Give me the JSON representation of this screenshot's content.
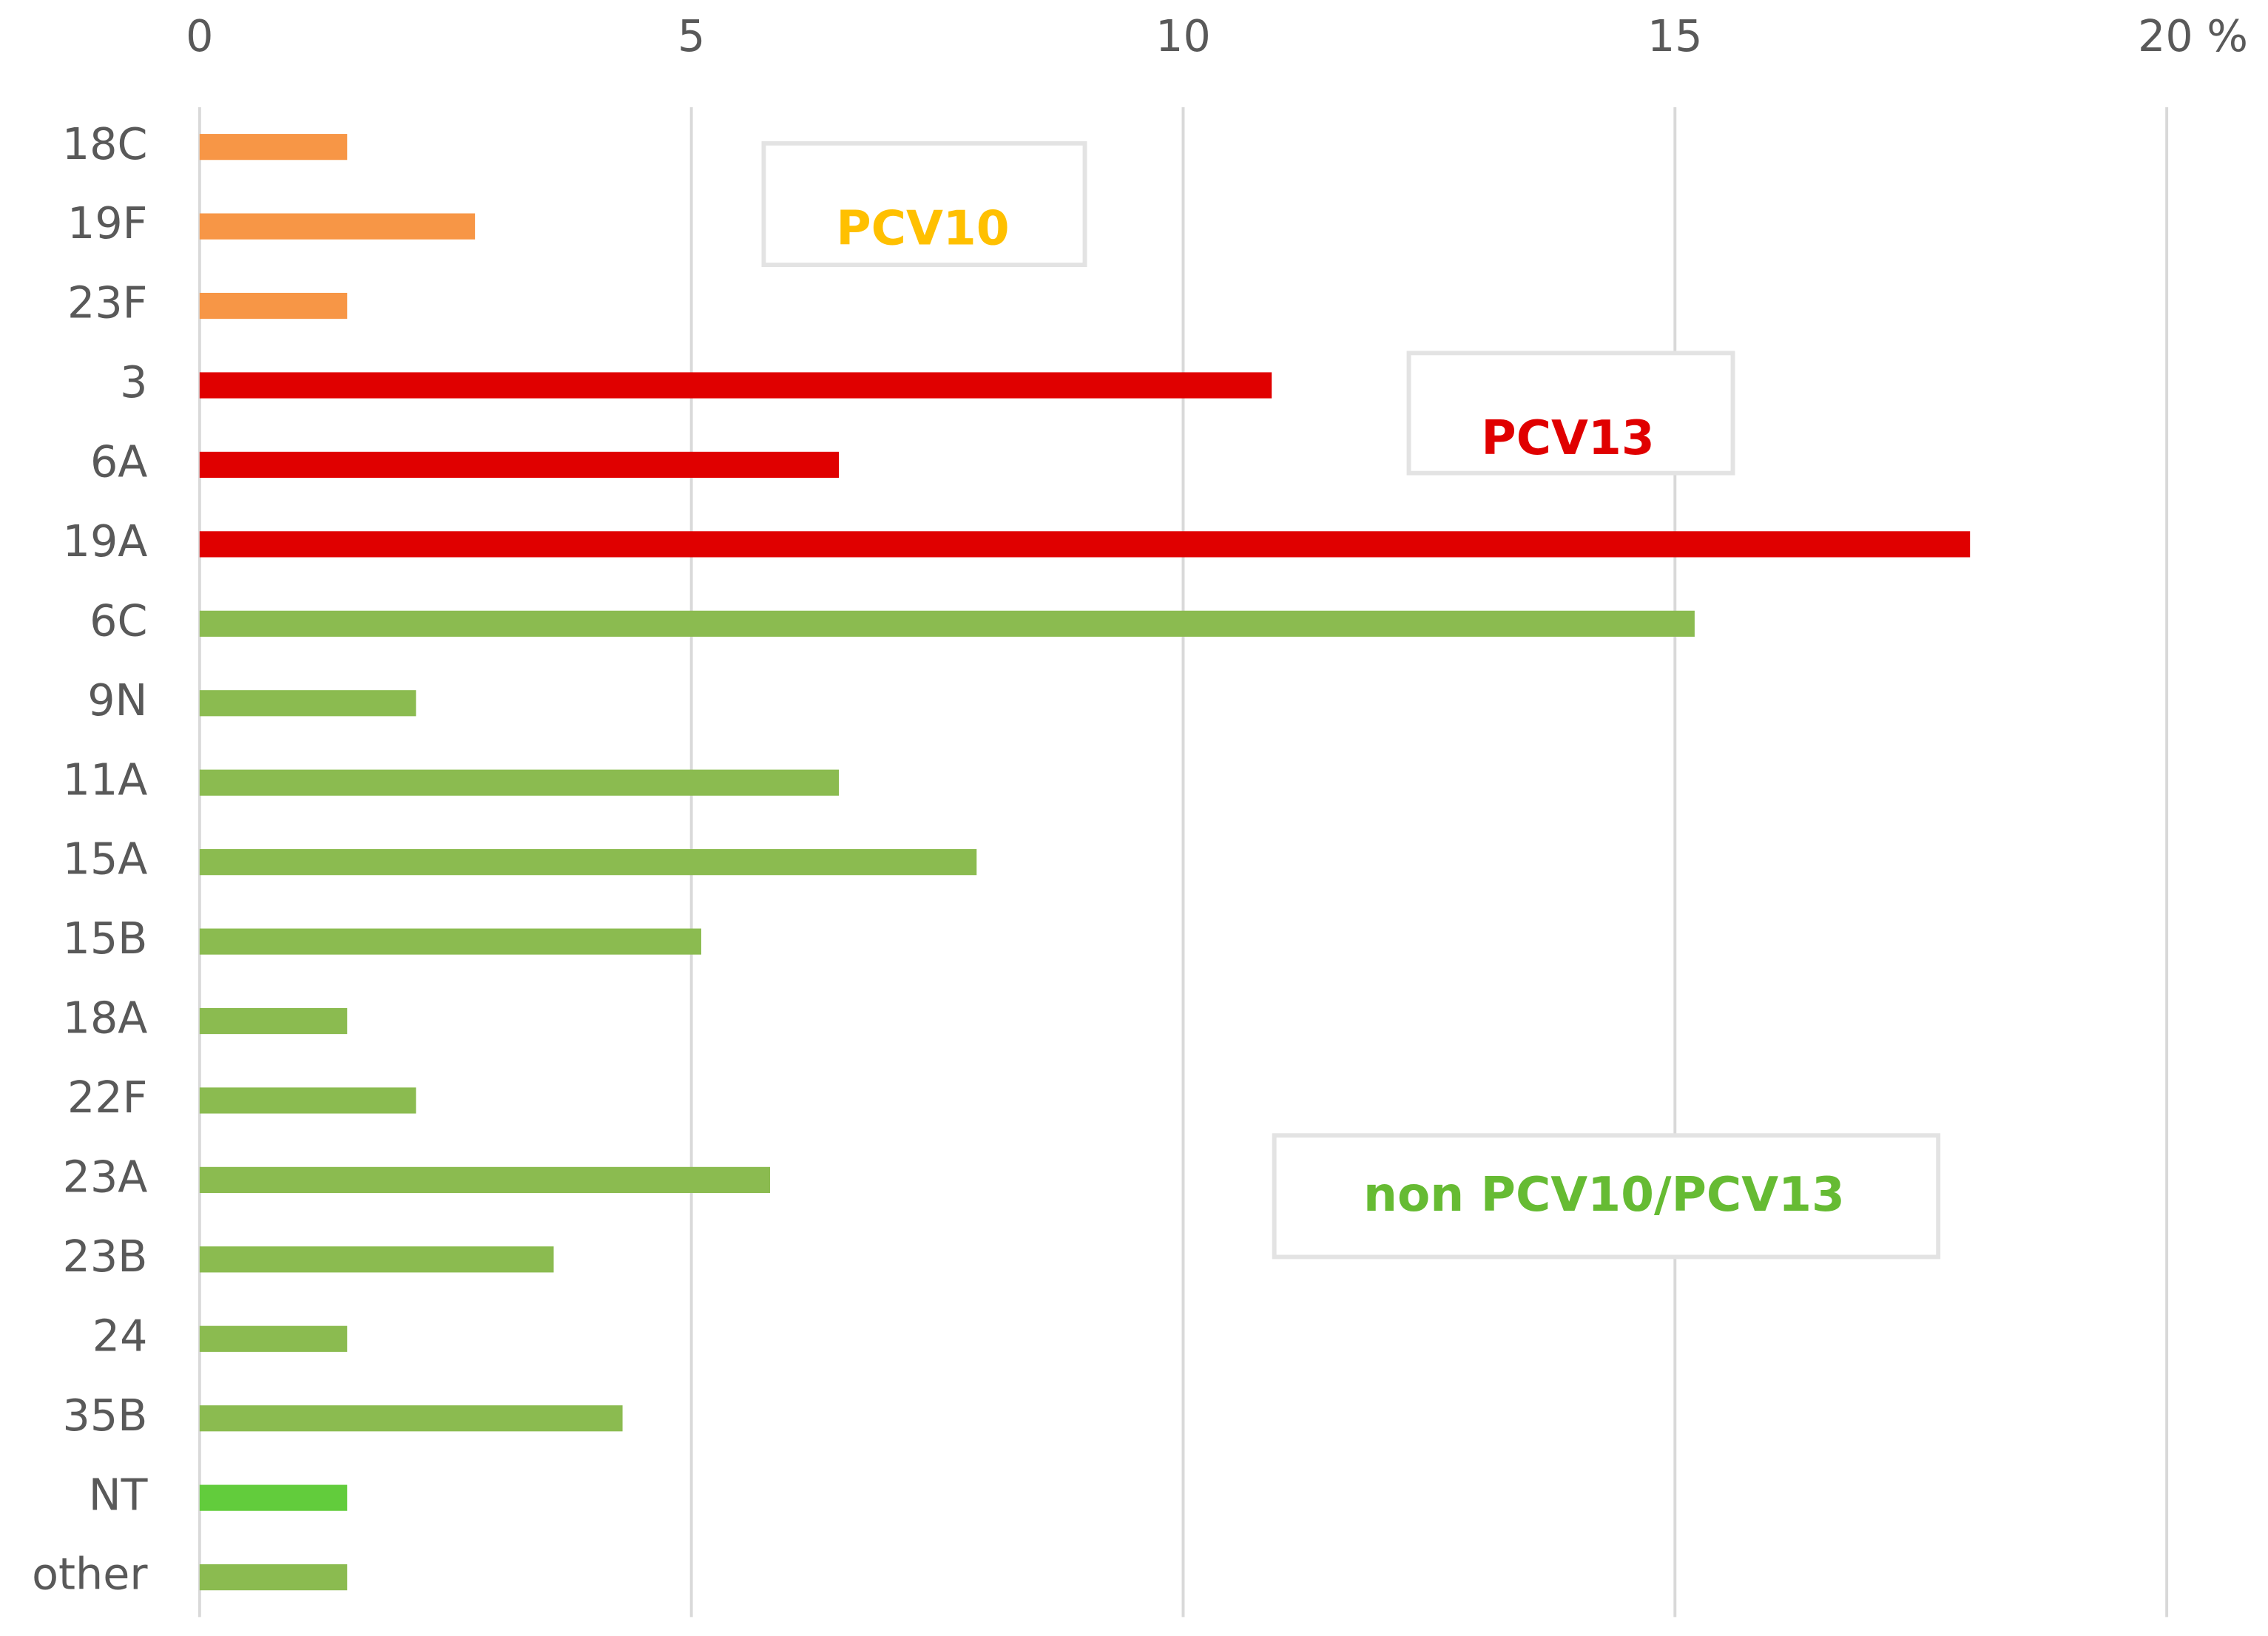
{
  "chart_data": {
    "type": "hbar",
    "categories": [
      "18C",
      "19F",
      "23F",
      "3",
      "6A",
      "19A",
      "6C",
      "9N",
      "11A",
      "15A",
      "15B",
      "18A",
      "22F",
      "23A",
      "23B",
      "24",
      "35B",
      "NT",
      "other"
    ],
    "values": [
      1.5,
      2.8,
      1.5,
      10.9,
      6.5,
      18.0,
      15.2,
      2.2,
      6.5,
      7.9,
      5.1,
      1.5,
      2.2,
      5.8,
      3.6,
      1.5,
      4.3,
      1.5,
      1.5
    ],
    "colors": [
      "#f79646",
      "#f79646",
      "#f79646",
      "#e00000",
      "#e00000",
      "#e00000",
      "#8bbb50",
      "#8bbb50",
      "#8bbb50",
      "#8bbb50",
      "#8bbb50",
      "#8bbb50",
      "#8bbb50",
      "#8bbb50",
      "#8bbb50",
      "#8bbb50",
      "#8bbb50",
      "#62cc3c",
      "#8bbb50"
    ],
    "xlim": [
      0,
      20
    ],
    "xticks": [
      0,
      5,
      10,
      15,
      {
        "value": 20,
        "label": "20 %"
      }
    ],
    "grid": true,
    "annotations": [
      {
        "text": "PCV10",
        "color": "#ffc000"
      },
      {
        "text": "PCV13",
        "color": "#e00000"
      },
      {
        "text": "non PCV10/PCV13",
        "color": "#66bb33"
      }
    ]
  }
}
